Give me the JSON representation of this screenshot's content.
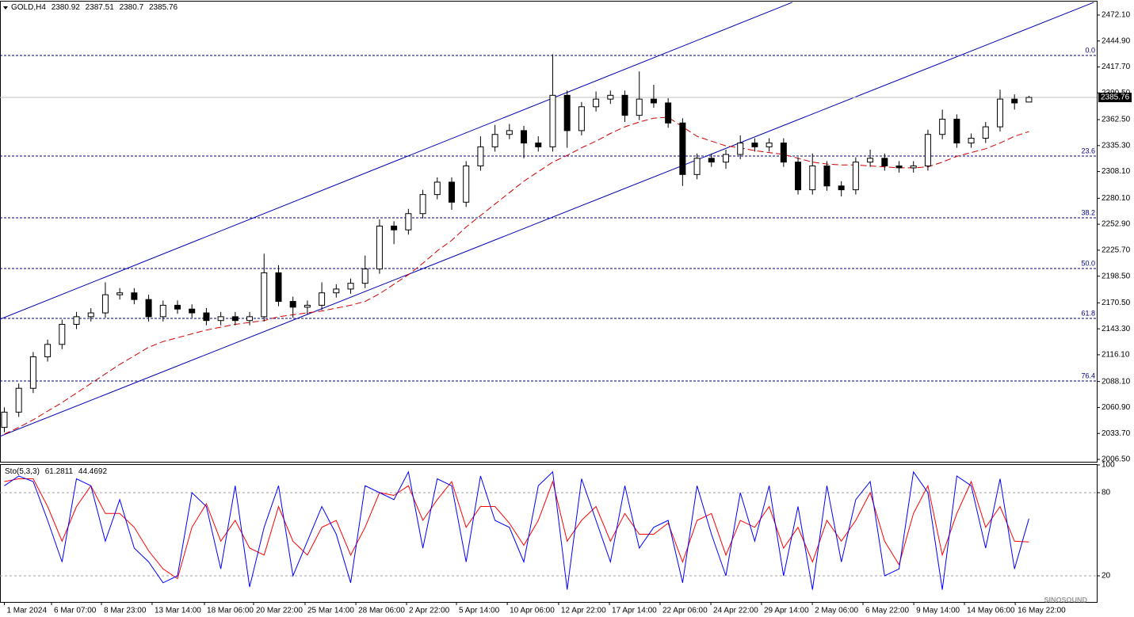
{
  "chart_data": [
    {
      "type": "candlestick",
      "title": "GOLD,H4",
      "xlim": [
        -0.3,
        75.7
      ],
      "xticks": [
        {
          "value": 0.0,
          "label": "1 Mar 2024"
        },
        {
          "value": 3.27,
          "label": "6 Mar 07:00"
        },
        {
          "value": 6.73,
          "label": "8 Mar 23:00"
        },
        {
          "value": 10.24,
          "label": "13 Mar 14:00"
        },
        {
          "value": 13.87,
          "label": "18 Mar 06:00"
        },
        {
          "value": 17.27,
          "label": "20 Mar 22:00"
        },
        {
          "value": 20.84,
          "label": "25 Mar 14:00"
        },
        {
          "value": 24.36,
          "label": "28 Mar 06:00"
        },
        {
          "value": 27.87,
          "label": "2 Apr 22:00"
        },
        {
          "value": 31.33,
          "label": "5 Apr 14:00"
        },
        {
          "value": 34.85,
          "label": "10 Apr 06:00"
        },
        {
          "value": 38.41,
          "label": "12 Apr 22:00"
        },
        {
          "value": 41.93,
          "label": "17 Apr 14:00"
        },
        {
          "value": 45.44,
          "label": "22 Apr 06:00"
        },
        {
          "value": 48.96,
          "label": "24 Apr 22:00"
        },
        {
          "value": 52.47,
          "label": "29 Apr 14:00"
        },
        {
          "value": 55.99,
          "label": "2 May 06:00"
        },
        {
          "value": 59.5,
          "label": "6 May 22:00"
        },
        {
          "value": 63.02,
          "label": "9 May 14:00"
        },
        {
          "value": 66.53,
          "label": "14 May 06:00"
        },
        {
          "value": 70.05,
          "label": "16 May 22:00"
        }
      ],
      "ylim": [
        2004,
        2486.2
      ],
      "yticks": [
        {
          "value": 2472.1,
          "label": "2472.10"
        },
        {
          "value": 2444.9,
          "label": "2444.90"
        },
        {
          "value": 2417.7,
          "label": "2417.70"
        },
        {
          "value": 2390.5,
          "label": "2390.50"
        },
        {
          "value": 2362.5,
          "label": "2362.50"
        },
        {
          "value": 2335.3,
          "label": "2335.30"
        },
        {
          "value": 2308.1,
          "label": "2308.10"
        },
        {
          "value": 2280.1,
          "label": "2280.10"
        },
        {
          "value": 2252.9,
          "label": "2252.90"
        },
        {
          "value": 2225.7,
          "label": "2225.70"
        },
        {
          "value": 2198.5,
          "label": "2198.50"
        },
        {
          "value": 2170.5,
          "label": "2170.50"
        },
        {
          "value": 2143.3,
          "label": "2143.30"
        },
        {
          "value": 2116.1,
          "label": "2116.10"
        },
        {
          "value": 2088.1,
          "label": "2088.10"
        },
        {
          "value": 2060.9,
          "label": "2060.90"
        },
        {
          "value": 2033.7,
          "label": "2033.70"
        },
        {
          "value": 2006.5,
          "label": "2006.50"
        }
      ],
      "open": [
        2040,
        2056,
        2081,
        2114,
        2127,
        2148,
        2156,
        2160,
        2179,
        2181,
        2174,
        2156,
        2168,
        2164,
        2160,
        2152,
        2156,
        2152,
        2156,
        2202,
        2172,
        2166,
        2168,
        2181,
        2185,
        2191,
        2206,
        2251,
        2247,
        2264,
        2284,
        2297,
        2276,
        2314,
        2334,
        2347,
        2351,
        2338,
        2334,
        2388,
        2351,
        2376,
        2384,
        2388,
        2367,
        2384,
        2380,
        2359,
        2305,
        2322,
        2318,
        2326,
        2338,
        2334,
        2338,
        2318,
        2289,
        2314,
        2293,
        2289,
        2318,
        2322,
        2314,
        2312,
        2314,
        2347,
        2363,
        2338,
        2343,
        2355,
        2384,
        2380.92
      ],
      "high": [
        2061,
        2086,
        2119,
        2132,
        2153,
        2161,
        2165,
        2192,
        2186,
        2186,
        2179,
        2173,
        2173,
        2169,
        2165,
        2161,
        2161,
        2161,
        2222,
        2210,
        2177,
        2173,
        2192,
        2190,
        2196,
        2220,
        2258,
        2256,
        2269,
        2289,
        2302,
        2302,
        2319,
        2345,
        2357,
        2358,
        2356,
        2345,
        2431,
        2393,
        2381,
        2392,
        2393,
        2393,
        2413,
        2399,
        2385,
        2364,
        2327,
        2327,
        2331,
        2346,
        2343,
        2343,
        2343,
        2323,
        2327,
        2319,
        2298,
        2323,
        2331,
        2327,
        2319,
        2319,
        2352,
        2373,
        2368,
        2348,
        2360,
        2394,
        2389,
        2387.51
      ],
      "low": [
        2035,
        2051,
        2076,
        2109,
        2122,
        2143,
        2151,
        2155,
        2174,
        2169,
        2151,
        2151,
        2159,
        2155,
        2147,
        2147,
        2147,
        2147,
        2151,
        2167,
        2155,
        2158,
        2163,
        2176,
        2180,
        2186,
        2201,
        2232,
        2242,
        2259,
        2279,
        2268,
        2271,
        2309,
        2329,
        2342,
        2322,
        2329,
        2329,
        2333,
        2346,
        2371,
        2379,
        2360,
        2362,
        2375,
        2354,
        2293,
        2300,
        2313,
        2311,
        2321,
        2329,
        2329,
        2313,
        2284,
        2284,
        2288,
        2282,
        2284,
        2313,
        2309,
        2307,
        2307,
        2309,
        2342,
        2333,
        2333,
        2338,
        2350,
        2373,
        2380.7
      ],
      "close": [
        2056,
        2081,
        2114,
        2127,
        2148,
        2156,
        2160,
        2179,
        2181,
        2174,
        2156,
        2168,
        2164,
        2160,
        2152,
        2156,
        2152,
        2156,
        2202,
        2172,
        2166,
        2168,
        2181,
        2185,
        2191,
        2206,
        2251,
        2247,
        2264,
        2284,
        2297,
        2276,
        2314,
        2334,
        2347,
        2351,
        2338,
        2334,
        2388,
        2351,
        2376,
        2384,
        2388,
        2367,
        2384,
        2380,
        2359,
        2305,
        2322,
        2318,
        2326,
        2338,
        2334,
        2338,
        2318,
        2289,
        2314,
        2293,
        2289,
        2318,
        2322,
        2314,
        2312,
        2314,
        2347,
        2363,
        2338,
        2343,
        2355,
        2384,
        2380,
        2385.76
      ],
      "up_color": "#ffffff",
      "down_color": "#000000",
      "edge_color": "#000000",
      "series": [
        {
          "color": "#d00000",
          "dashed": true,
          "values": [
            2033,
            2040,
            2048,
            2057,
            2066,
            2076,
            2086,
            2096,
            2106,
            2115,
            2124,
            2130,
            2134,
            2138,
            2142,
            2145,
            2148,
            2150,
            2152,
            2156,
            2158,
            2160,
            2162,
            2165,
            2168,
            2172,
            2180,
            2190,
            2200,
            2212,
            2225,
            2236,
            2250,
            2262,
            2274,
            2286,
            2298,
            2308,
            2318,
            2325,
            2333,
            2340,
            2348,
            2355,
            2360,
            2364,
            2365,
            2355,
            2345,
            2340,
            2335,
            2333,
            2330,
            2328,
            2326,
            2322,
            2318,
            2316,
            2315,
            2315,
            2314,
            2313,
            2312,
            2312,
            2313,
            2318,
            2324,
            2328,
            2332,
            2338,
            2345,
            2350
          ]
        }
      ],
      "trendlines": [
        {
          "color": "#0000b0",
          "x": [
            -0.3,
            54.6
          ],
          "y": [
            2153.4,
            2485.4
          ]
        },
        {
          "color": "#0000b0",
          "x": [
            -0.3,
            75.5
          ],
          "y": [
            2030.6,
            2485.4
          ]
        }
      ],
      "levels": [
        {
          "value": 2429.8,
          "label": "0.0"
        },
        {
          "value": 2324.4,
          "label": "23.6"
        },
        {
          "value": 2259.6,
          "label": "38.2"
        },
        {
          "value": 2206.5,
          "label": "50.0"
        },
        {
          "value": 2154.2,
          "label": "61.8"
        },
        {
          "value": 2088.7,
          "label": "76.4"
        }
      ],
      "level_color": "#000080"
    },
    {
      "type": "line",
      "title": "Sto(5,3,3)",
      "ylim": [
        0,
        100
      ],
      "yticks": [
        100,
        80,
        20
      ],
      "grid": true,
      "series": [
        {
          "color": "#0000ff",
          "values": [
            85,
            92,
            88,
            60,
            30,
            90,
            85,
            45,
            75,
            40,
            30,
            15,
            20,
            80,
            70,
            25,
            85,
            12,
            55,
            85,
            20,
            45,
            70,
            50,
            15,
            85,
            80,
            75,
            95,
            40,
            90,
            85,
            30,
            92,
            60,
            55,
            30,
            85,
            95,
            10,
            90,
            60,
            30,
            85,
            40,
            55,
            60,
            15,
            85,
            50,
            20,
            80,
            45,
            85,
            20,
            70,
            10,
            85,
            30,
            75,
            88,
            20,
            25,
            95,
            80,
            10,
            92,
            85,
            40,
            90,
            25,
            61.2811
          ]
        },
        {
          "color": "#ff0000",
          "values": [
            88,
            90,
            90,
            70,
            45,
            70,
            85,
            65,
            65,
            55,
            38,
            25,
            18,
            55,
            72,
            45,
            60,
            40,
            35,
            70,
            45,
            35,
            55,
            60,
            35,
            55,
            80,
            78,
            85,
            60,
            75,
            88,
            55,
            70,
            70,
            58,
            42,
            60,
            88,
            45,
            60,
            70,
            45,
            65,
            50,
            50,
            58,
            30,
            60,
            65,
            35,
            60,
            55,
            70,
            40,
            55,
            30,
            60,
            45,
            60,
            80,
            45,
            28,
            65,
            85,
            35,
            65,
            88,
            55,
            70,
            45,
            44.4692
          ]
        }
      ]
    }
  ],
  "watermark": "SINOSOUND"
}
